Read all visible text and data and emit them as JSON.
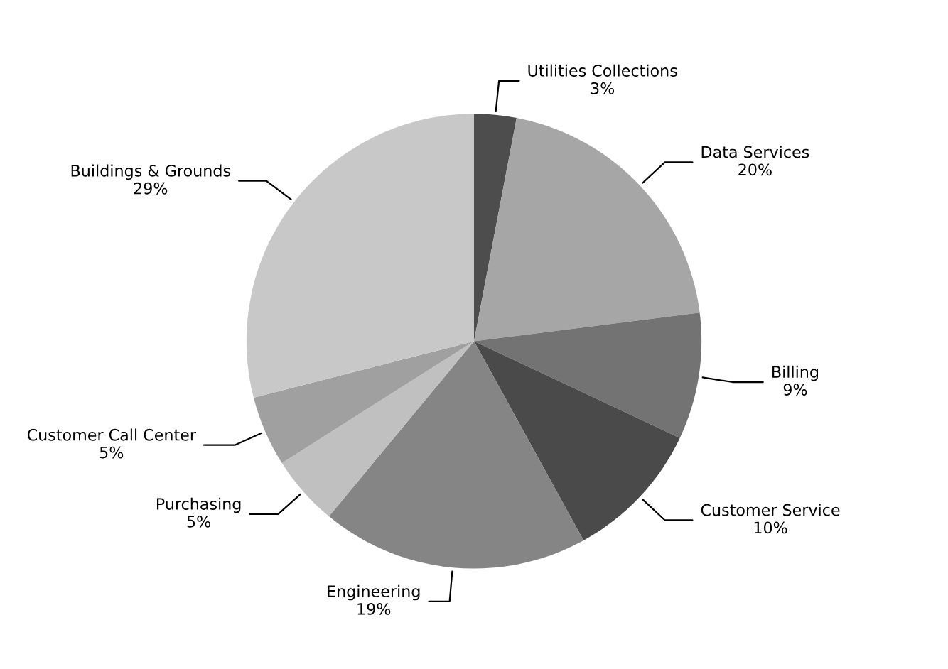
{
  "chart_data": {
    "type": "pie",
    "categories": [
      "Utilities Collections",
      "Data Services",
      "Billing",
      "Customer Service",
      "Engineering",
      "Purchasing",
      "Customer Call Center",
      "Buildings & Grounds"
    ],
    "values": [
      3,
      20,
      9,
      10,
      19,
      5,
      5,
      29
    ],
    "value_labels": [
      "3%",
      "20%",
      "9%",
      "10%",
      "19%",
      "5%",
      "5%",
      "29%"
    ],
    "colors": [
      "#4d4d4d",
      "#a6a6a6",
      "#737373",
      "#4a4a4a",
      "#858585",
      "#c0c0c0",
      "#a0a0a0",
      "#c8c8c8"
    ],
    "legend": false
  }
}
